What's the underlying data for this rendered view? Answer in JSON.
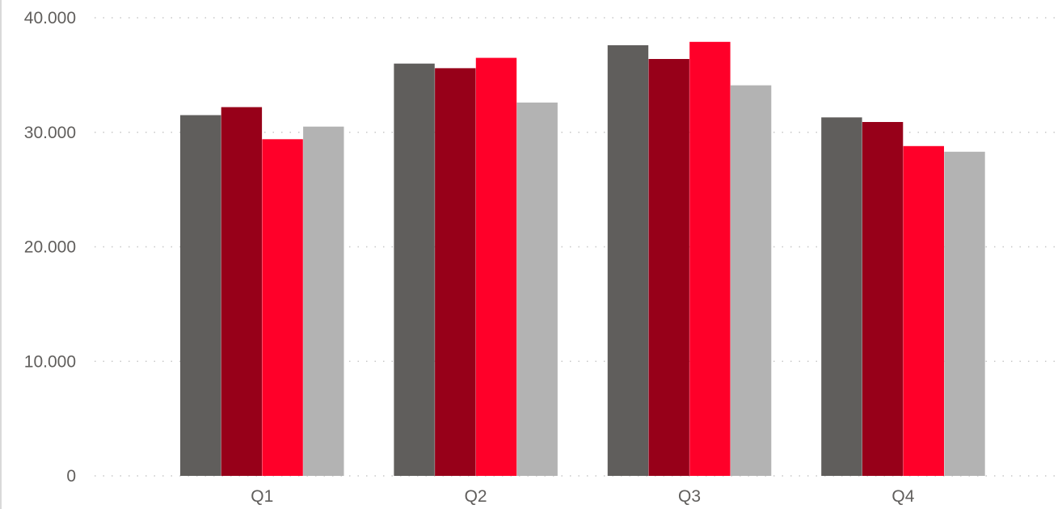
{
  "chart_data": {
    "type": "bar",
    "title": "",
    "xlabel": "",
    "ylabel": "",
    "categories": [
      "Q1",
      "Q2",
      "Q3",
      "Q4"
    ],
    "ylim": [
      0,
      40000
    ],
    "yticks": [
      0,
      10000,
      20000,
      30000,
      40000
    ],
    "ytick_labels": [
      "0",
      "10.000",
      "20.000",
      "30.000",
      "40.000"
    ],
    "grid": true,
    "legend": "none",
    "series": [
      {
        "color": "#605e5c",
        "values": [
          31500,
          36000,
          37600,
          31300
        ]
      },
      {
        "color": "#970019",
        "values": [
          32200,
          35600,
          36400,
          30900
        ]
      },
      {
        "color": "#ff0029",
        "values": [
          29400,
          36500,
          37900,
          28800
        ]
      },
      {
        "color": "#b3b3b3",
        "values": [
          30500,
          32600,
          34100,
          28300
        ]
      }
    ]
  }
}
